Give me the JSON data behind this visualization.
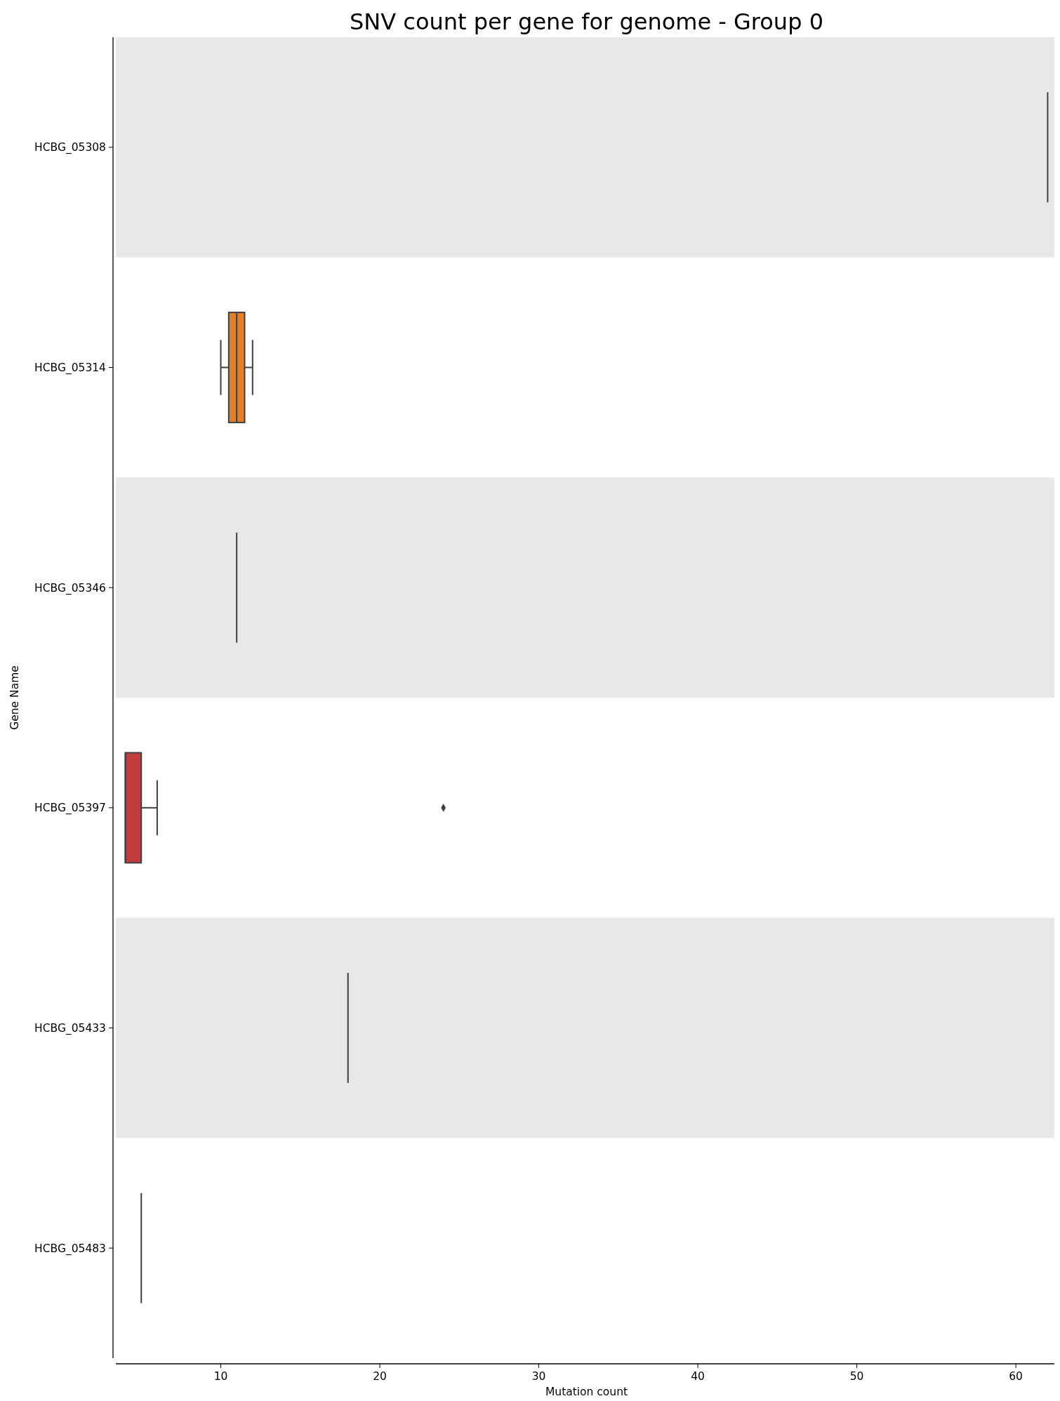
{
  "chart_data": {
    "type": "box",
    "orientation": "horizontal",
    "title": "SNV count per gene for genome - Group 0",
    "xlabel": "Mutation count",
    "ylabel": "Gene Name",
    "categories": [
      "HCBG_05308",
      "HCBG_05314",
      "HCBG_05346",
      "HCBG_05397",
      "HCBG_05433",
      "HCBG_05483"
    ],
    "boxes": [
      {
        "low": 62,
        "q1": 62,
        "median": 62,
        "q3": 62,
        "high": 62
      },
      {
        "low": 10,
        "q1": 10.5,
        "median": 11,
        "q3": 11.5,
        "high": 12
      },
      {
        "low": 11,
        "q1": 11,
        "median": 11,
        "q3": 11,
        "high": 11
      },
      {
        "low": 4,
        "q1": 4,
        "median": 4,
        "q3": 5,
        "high": 6,
        "outliers": [
          24
        ]
      },
      {
        "low": 18,
        "q1": 18,
        "median": 18,
        "q3": 18,
        "high": 18
      },
      {
        "low": 5,
        "q1": 5,
        "median": 5,
        "q3": 5,
        "high": 5
      }
    ],
    "colors": [
      null,
      "#e1812c",
      null,
      "#c03d3e",
      null,
      null
    ],
    "xlim": [
      3.4,
      62.6
    ],
    "xticks": [
      10,
      20,
      30,
      40,
      50,
      60
    ],
    "bands": [
      {
        "axis": "y",
        "from": "HCBG_05308",
        "to": "HCBG_05308",
        "color": "#e8e8e8"
      },
      {
        "axis": "y",
        "from": "HCBG_05346",
        "to": "HCBG_05346",
        "color": "#e8e8e8"
      },
      {
        "axis": "y",
        "from": "HCBG_05433",
        "to": "HCBG_05433",
        "color": "#e8e8e8"
      }
    ]
  }
}
